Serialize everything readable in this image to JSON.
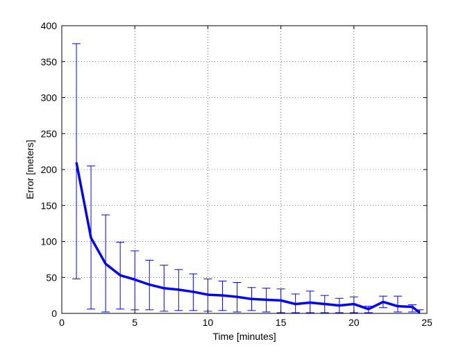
{
  "chart_data": {
    "type": "line",
    "title": "",
    "xlabel": "Time [minutes]",
    "ylabel": "Error [meters]",
    "xlim": [
      0,
      25
    ],
    "ylim": [
      0,
      400
    ],
    "xticks": [
      0,
      5,
      10,
      15,
      20,
      25
    ],
    "yticks": [
      0,
      50,
      100,
      150,
      200,
      250,
      300,
      350,
      400
    ],
    "grid": true,
    "legend": "none",
    "line_color": "#0000ff",
    "series": [
      {
        "x": [
          1,
          2,
          3,
          4,
          5,
          6,
          7,
          8,
          9,
          10,
          11,
          12,
          13,
          14,
          15,
          16,
          17,
          18,
          19,
          20,
          21,
          22,
          23,
          24,
          24.5
        ],
        "values": [
          210,
          105,
          69,
          53,
          47,
          40,
          35,
          33,
          30,
          26,
          25,
          23,
          20,
          19,
          18,
          13,
          15,
          13,
          11,
          13,
          6,
          16,
          10,
          9,
          1
        ],
        "error_low": [
          48,
          6,
          2,
          6,
          5,
          5,
          3,
          4,
          4,
          3,
          4,
          2,
          4,
          2,
          1,
          1,
          1,
          1,
          1,
          1,
          1,
          8,
          2,
          2,
          0
        ],
        "error_high": [
          375,
          205,
          137,
          99,
          87,
          74,
          67,
          61,
          55,
          48,
          45,
          43,
          36,
          35,
          34,
          27,
          31,
          25,
          21,
          23,
          10,
          24,
          24,
          12,
          5
        ]
      }
    ]
  }
}
